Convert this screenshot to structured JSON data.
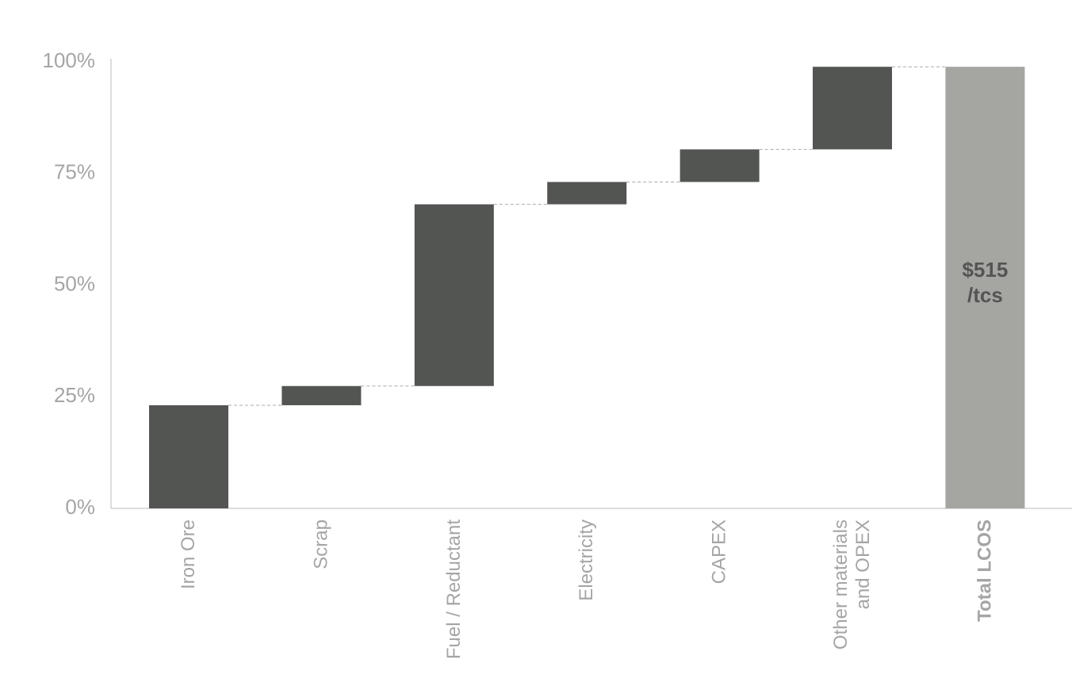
{
  "chart_data": {
    "type": "waterfall",
    "categories": [
      "Iron Ore",
      "Scrap",
      "Fuel / Reductant",
      "Electricity",
      "CAPEX",
      "Other materials and OPEX",
      "Total LCOS"
    ],
    "values": [
      23.1,
      4.3,
      40.7,
      5.0,
      7.3,
      18.5,
      98.9
    ],
    "is_total": [
      false,
      false,
      false,
      false,
      false,
      false,
      true
    ],
    "color": "#535552",
    "total_color": "#a5a5a2",
    "total_annotation": [
      "$515",
      "/tcs"
    ],
    "ylim": [
      0,
      100
    ],
    "yticks": [
      {
        "value": 0,
        "label": "0%"
      },
      {
        "value": 25,
        "label": "25%"
      },
      {
        "value": 50,
        "label": "50%"
      },
      {
        "value": 75,
        "label": "75%"
      },
      {
        "value": 100,
        "label": "100%"
      }
    ],
    "connectors": true
  }
}
